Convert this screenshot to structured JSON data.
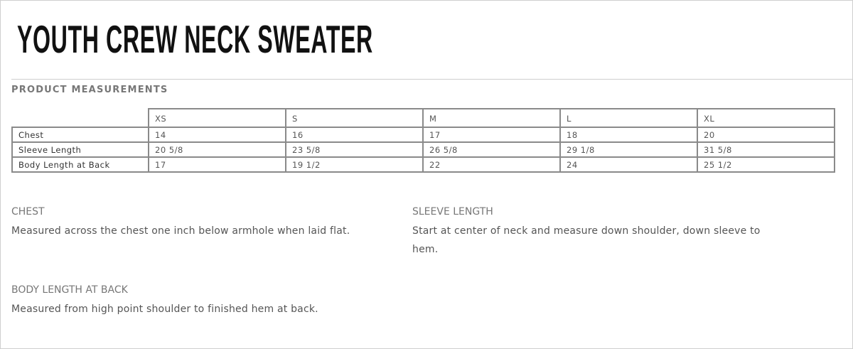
{
  "title": "YOUTH CREW NECK SWEATER",
  "section_title": "PRODUCT MEASUREMENTS",
  "table": {
    "sizes": [
      "XS",
      "S",
      "M",
      "L",
      "XL"
    ],
    "rows": [
      {
        "label": "Chest",
        "values": [
          "14",
          "16",
          "17",
          "18",
          "20"
        ]
      },
      {
        "label": "Sleeve Length",
        "values": [
          "20 5/8",
          "23 5/8",
          "26 5/8",
          "29 1/8",
          "31 5/8"
        ]
      },
      {
        "label": "Body Length at Back",
        "values": [
          "17",
          "19 1/2",
          "22",
          "24",
          "25 1/2"
        ]
      }
    ]
  },
  "descriptions": [
    {
      "heading": "CHEST",
      "text": "Measured across the chest one inch below armhole when laid flat."
    },
    {
      "heading": "SLEEVE LENGTH",
      "text": "Start at center of neck and measure down shoulder, down sleeve to hem."
    },
    {
      "heading": "BODY LENGTH AT BACK",
      "text": "Measured from high point shoulder to finished hem at back."
    }
  ]
}
